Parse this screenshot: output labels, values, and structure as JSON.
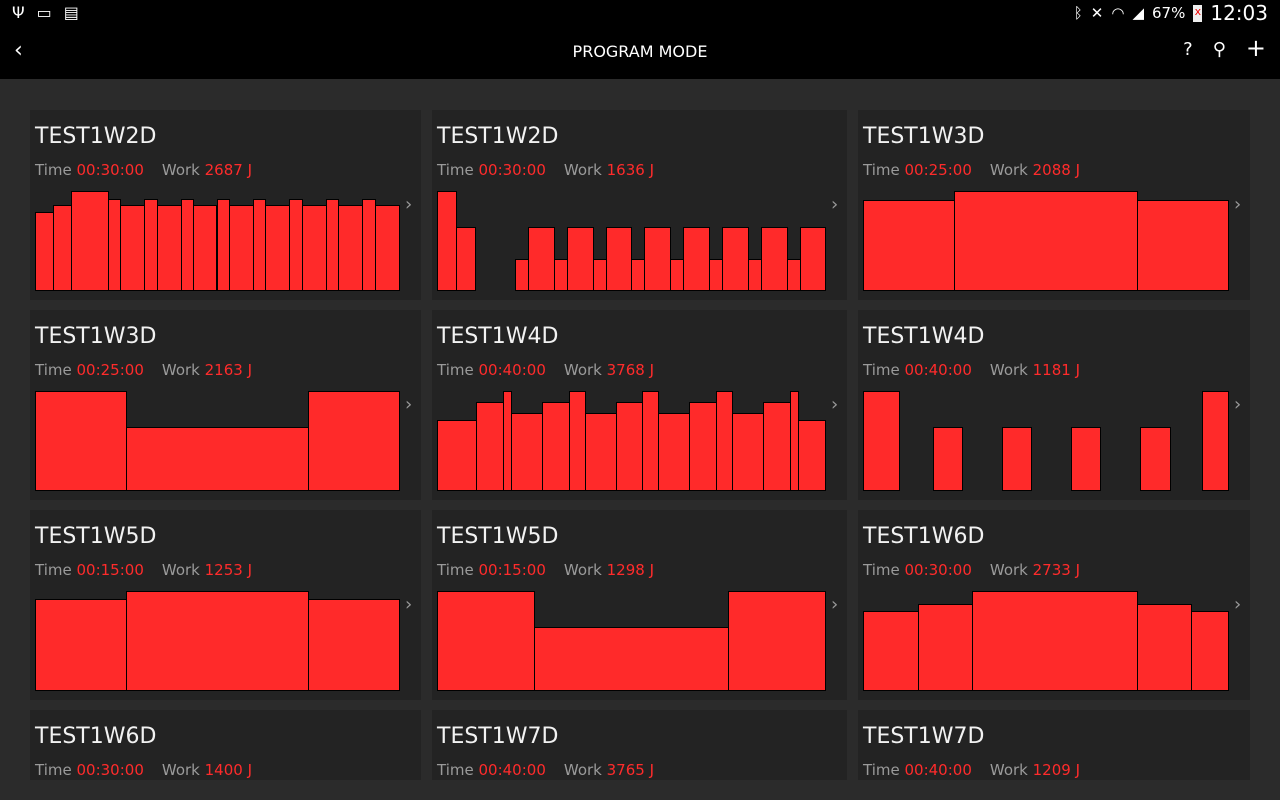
{
  "status_bar": {
    "icons": [
      "usb-icon",
      "screen-cast-icon",
      "sim-off-icon",
      "bluetooth-icon",
      "mute-icon",
      "wifi-icon",
      "signal-icon",
      "battery-icon"
    ],
    "battery": "67%",
    "time": "12:03"
  },
  "app_bar": {
    "title": "PROGRAM MODE",
    "back_icon": "chevron-left-icon",
    "help": "?",
    "search_icon": "search-icon",
    "add": "+"
  },
  "labels": {
    "time": "Time",
    "work": "Work"
  },
  "accent": "#ff2a2a",
  "programs": [
    {
      "name": "TEST1W2D",
      "time": "00:30:00",
      "work": "2687 J",
      "segments": [
        [
          18,
          79
        ],
        [
          18,
          86
        ],
        [
          37,
          100
        ],
        [
          12,
          92
        ],
        [
          24,
          86
        ],
        [
          13,
          92
        ],
        [
          24,
          86
        ],
        [
          12,
          92
        ],
        [
          24,
          86
        ],
        [
          13,
          92
        ],
        [
          24,
          86
        ],
        [
          12,
          92
        ],
        [
          24,
          86
        ],
        [
          13,
          92
        ],
        [
          24,
          86
        ],
        [
          12,
          92
        ],
        [
          24,
          86
        ],
        [
          13,
          92
        ],
        [
          24,
          86
        ]
      ]
    },
    {
      "name": "TEST1W2D",
      "time": "00:30:00",
      "work": "1636 J",
      "segments": [
        [
          19,
          100
        ],
        [
          19,
          64
        ],
        [
          40,
          0
        ],
        [
          13,
          32
        ],
        [
          26,
          64
        ],
        [
          13,
          32
        ],
        [
          26,
          64
        ],
        [
          13,
          32
        ],
        [
          26,
          64
        ],
        [
          13,
          32
        ],
        [
          26,
          64
        ],
        [
          13,
          32
        ],
        [
          26,
          64
        ],
        [
          13,
          32
        ],
        [
          26,
          64
        ],
        [
          13,
          32
        ],
        [
          26,
          64
        ],
        [
          13,
          32
        ],
        [
          25,
          64
        ]
      ]
    },
    {
      "name": "TEST1W3D",
      "time": "00:25:00",
      "work": "2088 J",
      "segments": [
        [
          91,
          91
        ],
        [
          183,
          100
        ],
        [
          91,
          91
        ]
      ]
    },
    {
      "name": "TEST1W3D",
      "time": "00:25:00",
      "work": "2163 J",
      "segments": [
        [
          91,
          100
        ],
        [
          183,
          64
        ],
        [
          91,
          100
        ]
      ]
    },
    {
      "name": "TEST1W4D",
      "time": "00:40:00",
      "work": "3768 J",
      "segments": [
        [
          39,
          71
        ],
        [
          27,
          89
        ],
        [
          8,
          100
        ],
        [
          31,
          78
        ],
        [
          27,
          89
        ],
        [
          16,
          100
        ],
        [
          31,
          78
        ],
        [
          27,
          89
        ],
        [
          16,
          100
        ],
        [
          31,
          78
        ],
        [
          27,
          89
        ],
        [
          16,
          100
        ],
        [
          31,
          78
        ],
        [
          27,
          89
        ],
        [
          8,
          100
        ],
        [
          27,
          71
        ]
      ]
    },
    {
      "name": "TEST1W4D",
      "time": "00:40:00",
      "work": "1181 J",
      "segments": [
        [
          36,
          100
        ],
        [
          34,
          0
        ],
        [
          29,
          64
        ],
        [
          40,
          0
        ],
        [
          29,
          64
        ],
        [
          40,
          0
        ],
        [
          29,
          64
        ],
        [
          40,
          0
        ],
        [
          30,
          64
        ],
        [
          32,
          0
        ],
        [
          26,
          100
        ]
      ]
    },
    {
      "name": "TEST1W5D",
      "time": "00:15:00",
      "work": "1253 J",
      "segments": [
        [
          91,
          92
        ],
        [
          183,
          100
        ],
        [
          91,
          92
        ]
      ]
    },
    {
      "name": "TEST1W5D",
      "time": "00:15:00",
      "work": "1298 J",
      "segments": [
        [
          97,
          100
        ],
        [
          195,
          64
        ],
        [
          97,
          100
        ]
      ]
    },
    {
      "name": "TEST1W6D",
      "time": "00:30:00",
      "work": "2733 J",
      "segments": [
        [
          55,
          80
        ],
        [
          54,
          87
        ],
        [
          165,
          100
        ],
        [
          54,
          87
        ],
        [
          37,
          80
        ]
      ]
    },
    {
      "name": "TEST1W6D",
      "time": "00:30:00",
      "work": "1400 J",
      "segments": []
    },
    {
      "name": "TEST1W7D",
      "time": "00:40:00",
      "work": "3765 J",
      "segments": []
    },
    {
      "name": "TEST1W7D",
      "time": "00:40:00",
      "work": "1209 J",
      "segments": []
    }
  ]
}
